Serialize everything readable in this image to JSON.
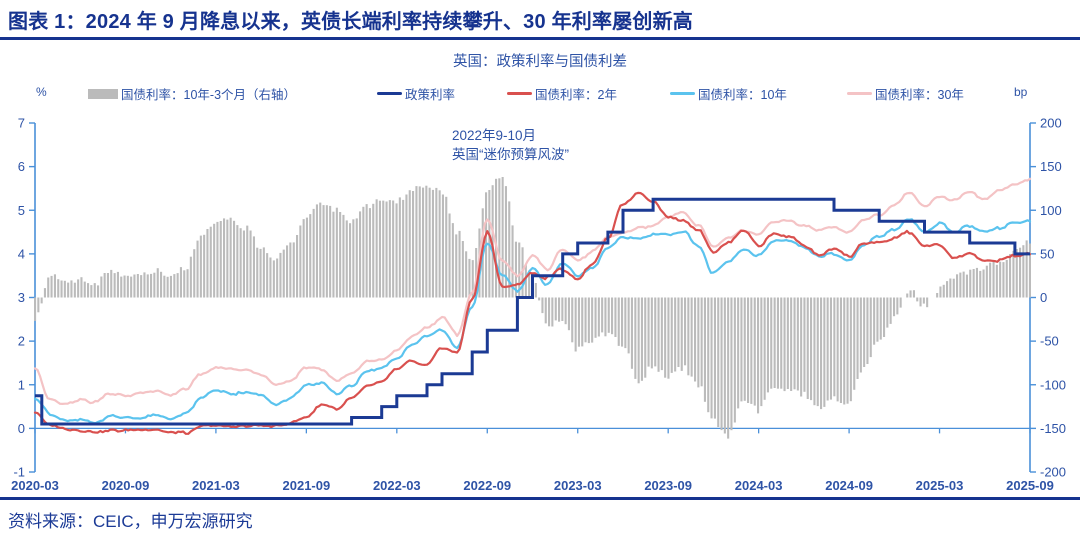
{
  "header": {
    "title": "图表 1：2024 年 9 月降息以来，英债长端利率持续攀升、30 年利率屡创新高"
  },
  "chart": {
    "title": "英国：政策利率与国债利差",
    "left_axis_unit": "%",
    "right_axis_unit": "bp",
    "annotation": {
      "line1": "2022年9-10月",
      "line2": "英国“迷你预算风波”"
    },
    "legend": [
      {
        "label": "国债利率：10年-3个月（右轴）",
        "type": "bar",
        "color": "#BBBBBB"
      },
      {
        "label": "政策利率",
        "type": "line",
        "color": "#1B3A94"
      },
      {
        "label": "国债利率：2年",
        "type": "line",
        "color": "#D9504E"
      },
      {
        "label": "国债利率：10年",
        "type": "line",
        "color": "#5BC3EE"
      },
      {
        "label": "国债利率：30年",
        "type": "line",
        "color": "#F4C3C5"
      }
    ]
  },
  "footer": {
    "source": "资料来源：CEIC，申万宏源研究"
  },
  "colors": {
    "title_navy": "#16338F",
    "label_blue": "#2E53A6",
    "axis_blue": "#4A90D9",
    "policy_navy": "#1B3A94",
    "yield_2y_red": "#D9504E",
    "yield_10y_cyan": "#5BC3EE",
    "yield_30y_pink": "#F4C3C5",
    "spread_gray": "#BBBBBB"
  },
  "chart_data": {
    "type": "mixed",
    "subtypes": {
      "spread_10y_3m": "bar",
      "policy_rate": "step-line",
      "gilt_yields": "line"
    },
    "title": "英国：政策利率与国债利差",
    "x_start": "2020-03",
    "x_end": "2025-09",
    "x_monthly_count": 67,
    "x_tick_labels": [
      "2020-03",
      "2020-09",
      "2021-03",
      "2021-09",
      "2022-03",
      "2022-09",
      "2023-03",
      "2023-09",
      "2024-03",
      "2024-09",
      "2025-03",
      "2025-09"
    ],
    "left_axis": {
      "unit": "%",
      "min": -1,
      "max": 7,
      "ticks": [
        7,
        6,
        5,
        4,
        3,
        2,
        1,
        0,
        -1
      ]
    },
    "right_axis": {
      "unit": "bp",
      "min": -200,
      "max": 200,
      "ticks": [
        200,
        150,
        100,
        50,
        0,
        -50,
        -100,
        -150,
        -200
      ]
    },
    "legend_position": "top",
    "grid": false,
    "annotation": "2022年9-10月 英国“迷你预算风波”",
    "series": [
      {
        "name": "国债利率：10年-3个月（右轴）",
        "kind": "bar",
        "axis": "right",
        "color": "#BBBBBB",
        "values_bp": [
          -25,
          25,
          20,
          20,
          15,
          30,
          25,
          25,
          30,
          25,
          35,
          70,
          85,
          90,
          80,
          55,
          45,
          60,
          95,
          110,
          100,
          85,
          105,
          110,
          110,
          125,
          130,
          120,
          75,
          45,
          120,
          140,
          65,
          25,
          -35,
          -25,
          -60,
          -50,
          -40,
          -55,
          -95,
          -80,
          -90,
          -80,
          -100,
          -140,
          -160,
          -115,
          -130,
          -100,
          -105,
          -110,
          -125,
          -115,
          -120,
          -80,
          -50,
          -25,
          10,
          -10,
          10,
          25,
          30,
          35,
          40,
          55,
          65
        ]
      },
      {
        "name": "政策利率",
        "kind": "step",
        "axis": "left",
        "color": "#1B3A94",
        "changes": [
          {
            "date": "2020-03",
            "rate": 0.75
          },
          {
            "date": "2020-03",
            "rate": 0.1
          },
          {
            "date": "2021-12",
            "rate": 0.25
          },
          {
            "date": "2022-02",
            "rate": 0.5
          },
          {
            "date": "2022-03",
            "rate": 0.75
          },
          {
            "date": "2022-05",
            "rate": 1.0
          },
          {
            "date": "2022-06",
            "rate": 1.25
          },
          {
            "date": "2022-08",
            "rate": 1.75
          },
          {
            "date": "2022-09",
            "rate": 2.25
          },
          {
            "date": "2022-11",
            "rate": 3.0
          },
          {
            "date": "2022-12",
            "rate": 3.5
          },
          {
            "date": "2023-02",
            "rate": 4.0
          },
          {
            "date": "2023-03",
            "rate": 4.25
          },
          {
            "date": "2023-05",
            "rate": 4.5
          },
          {
            "date": "2023-06",
            "rate": 5.0
          },
          {
            "date": "2023-08",
            "rate": 5.25
          },
          {
            "date": "2024-08",
            "rate": 5.0
          },
          {
            "date": "2024-11",
            "rate": 4.75
          },
          {
            "date": "2025-02",
            "rate": 4.5
          },
          {
            "date": "2025-05",
            "rate": 4.25
          },
          {
            "date": "2025-08",
            "rate": 4.0
          }
        ]
      },
      {
        "name": "国债利率：2年",
        "kind": "line",
        "axis": "left",
        "color": "#D9504E",
        "values_pct": [
          0.35,
          0.08,
          0.0,
          -0.05,
          -0.08,
          -0.05,
          -0.05,
          -0.05,
          -0.02,
          -0.08,
          -0.1,
          0.05,
          0.06,
          0.04,
          0.06,
          0.06,
          0.05,
          0.12,
          0.25,
          0.55,
          0.45,
          0.68,
          0.95,
          1.05,
          1.35,
          1.55,
          1.45,
          1.85,
          1.75,
          2.95,
          4.5,
          3.25,
          3.3,
          3.55,
          3.45,
          3.65,
          3.45,
          3.75,
          4.35,
          5.15,
          5.4,
          5.2,
          4.85,
          4.75,
          4.55,
          4.05,
          4.25,
          4.55,
          4.2,
          4.45,
          4.4,
          4.2,
          3.95,
          4.1,
          3.95,
          4.25,
          4.25,
          4.35,
          4.5,
          4.2,
          4.2,
          3.9,
          4.0,
          3.85,
          3.85,
          3.95,
          4.0
        ]
      },
      {
        "name": "国债利率：10年",
        "kind": "line",
        "axis": "left",
        "color": "#5BC3EE",
        "values_pct": [
          0.7,
          0.32,
          0.2,
          0.2,
          0.12,
          0.3,
          0.25,
          0.25,
          0.3,
          0.2,
          0.32,
          0.7,
          0.85,
          0.8,
          0.8,
          0.75,
          0.55,
          0.7,
          1.0,
          1.05,
          0.8,
          0.97,
          1.3,
          1.4,
          1.6,
          1.9,
          2.1,
          2.25,
          1.85,
          2.8,
          4.25,
          3.5,
          3.15,
          3.65,
          3.3,
          3.8,
          3.5,
          3.7,
          4.15,
          4.4,
          4.35,
          4.45,
          4.45,
          4.5,
          4.2,
          3.55,
          3.8,
          4.1,
          3.95,
          4.3,
          4.3,
          4.15,
          3.95,
          4.0,
          3.85,
          4.2,
          4.4,
          4.55,
          4.8,
          4.5,
          4.7,
          4.5,
          4.65,
          4.5,
          4.6,
          4.7,
          4.75
        ]
      },
      {
        "name": "国债利率：30年",
        "kind": "line",
        "axis": "left",
        "color": "#F4C3C5",
        "values_pct": [
          1.4,
          0.65,
          0.55,
          0.65,
          0.6,
          0.8,
          0.75,
          0.8,
          0.85,
          0.75,
          0.9,
          1.25,
          1.4,
          1.35,
          1.35,
          1.25,
          1.0,
          1.1,
          1.4,
          1.35,
          1.1,
          1.25,
          1.55,
          1.6,
          1.8,
          2.1,
          2.3,
          2.55,
          2.15,
          3.1,
          4.8,
          3.85,
          3.5,
          3.95,
          3.65,
          4.1,
          3.85,
          4.05,
          4.4,
          4.5,
          4.6,
          4.65,
          4.85,
          4.95,
          4.65,
          4.15,
          4.35,
          4.55,
          4.45,
          4.75,
          4.75,
          4.65,
          4.55,
          4.6,
          4.5,
          4.8,
          4.9,
          5.1,
          5.4,
          5.1,
          5.3,
          5.25,
          5.4,
          5.25,
          5.45,
          5.6,
          5.7
        ]
      }
    ]
  }
}
